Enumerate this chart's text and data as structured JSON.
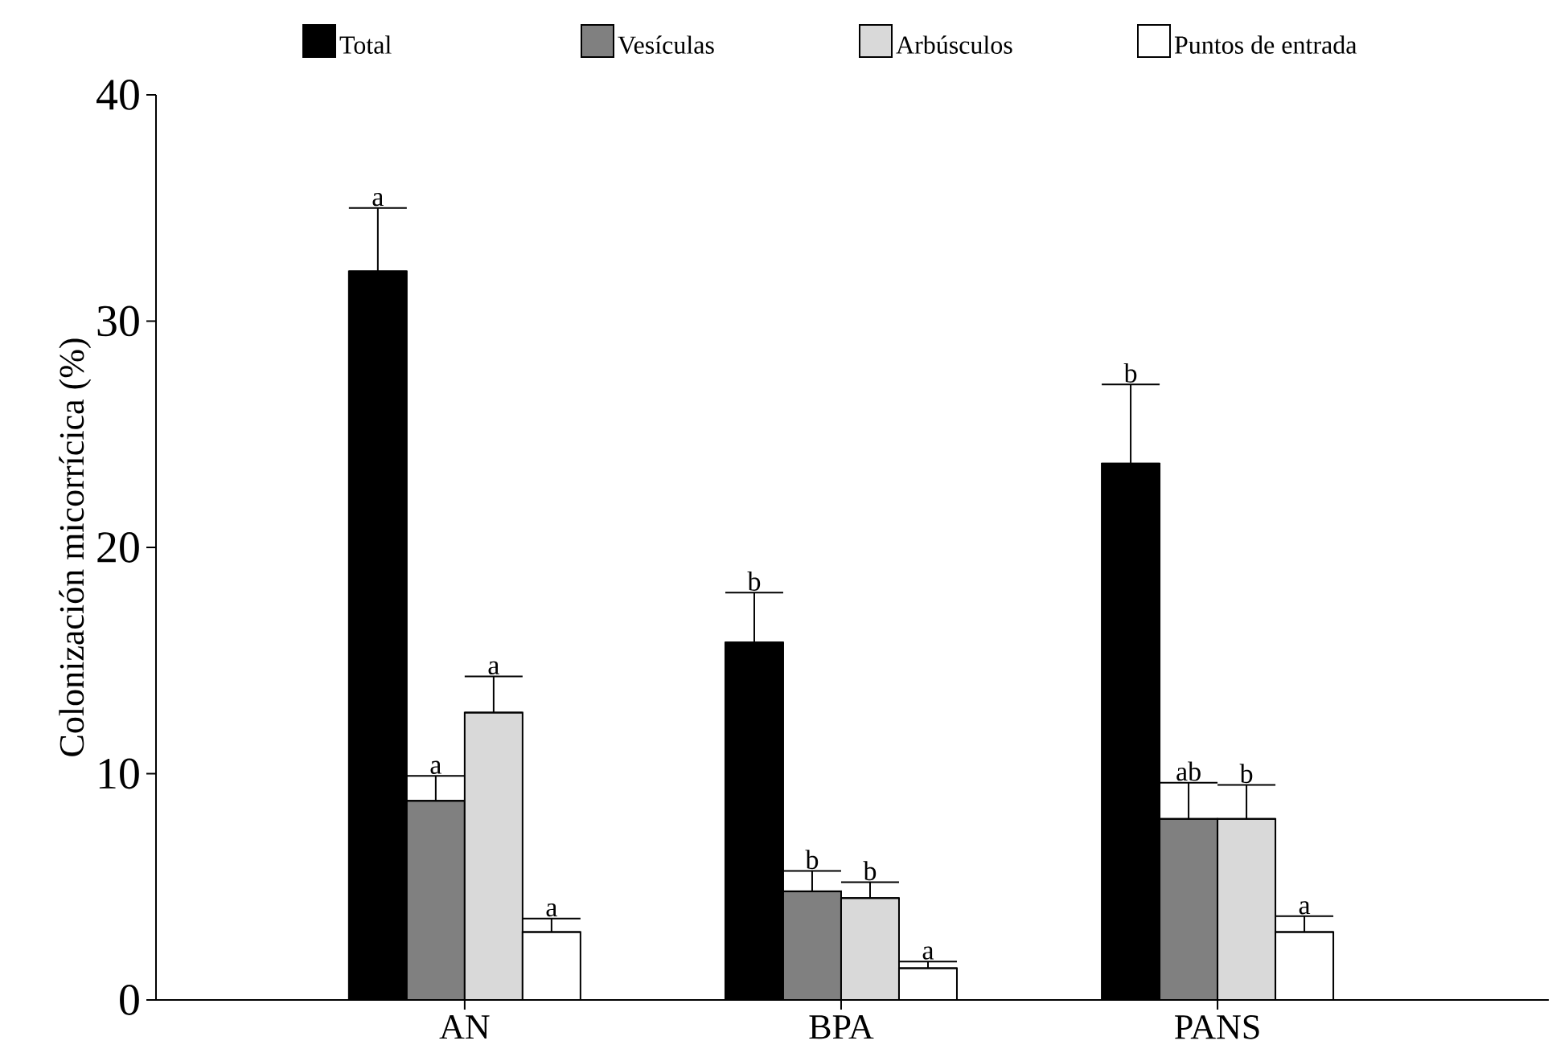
{
  "chart_data": {
    "type": "bar",
    "ylabel": "Colonización micorrícica (%)",
    "categories": [
      "AN",
      "BPA",
      "PANS"
    ],
    "series": [
      {
        "name": "Total",
        "color": "#000000",
        "values": [
          32.2,
          15.8,
          23.7
        ],
        "errors": [
          [
            32.2,
            35.0
          ],
          [
            15.8,
            18.0
          ],
          [
            23.7,
            27.2
          ]
        ]
      },
      {
        "name": "Vesículas",
        "color": "#808080",
        "values": [
          8.8,
          4.8,
          8.0
        ],
        "errors": [
          [
            8.8,
            9.9
          ],
          [
            4.8,
            5.7
          ],
          [
            8.0,
            9.6
          ]
        ]
      },
      {
        "name": "Arbúsculos",
        "color": "#d9d9d9",
        "values": [
          12.7,
          4.5,
          8.0
        ],
        "errors": [
          [
            12.7,
            14.3
          ],
          [
            4.5,
            5.2
          ],
          [
            8.0,
            9.5
          ]
        ]
      },
      {
        "name": "Puntos de entrada",
        "color": "#ffffff",
        "values": [
          3.0,
          1.4,
          3.0
        ],
        "errors": [
          [
            3.0,
            3.6
          ],
          [
            1.4,
            1.7
          ],
          [
            3.0,
            3.7
          ]
        ]
      }
    ],
    "ylim": [
      0,
      40
    ],
    "yticks": [
      0,
      10,
      20,
      30,
      40
    ],
    "grid": false,
    "legend": "top",
    "annotations": [
      "a",
      "a",
      "a",
      "a",
      "b",
      "b",
      "b",
      "a",
      "b",
      "ab",
      "b",
      "a"
    ]
  }
}
